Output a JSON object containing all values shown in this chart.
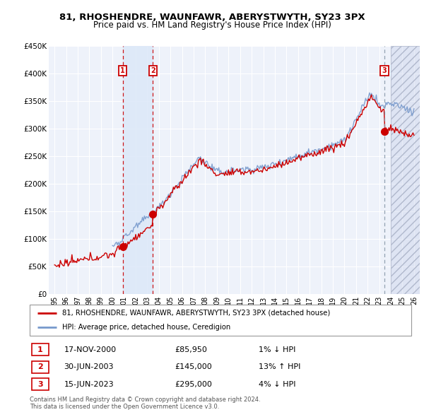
{
  "title": "81, RHOSHENDRE, WAUNFAWR, ABERYSTWYTH, SY23 3PX",
  "subtitle": "Price paid vs. HM Land Registry's House Price Index (HPI)",
  "legend_line1": "81, RHOSHENDRE, WAUNFAWR, ABERYSTWYTH, SY23 3PX (detached house)",
  "legend_line2": "HPI: Average price, detached house, Ceredigion",
  "transactions": [
    {
      "num": 1,
      "date": "17-NOV-2000",
      "price": 85950,
      "pct": "1% ↓ HPI"
    },
    {
      "num": 2,
      "date": "30-JUN-2003",
      "price": 145000,
      "pct": "13% ↑ HPI"
    },
    {
      "num": 3,
      "date": "15-JUN-2023",
      "price": 295000,
      "pct": "4% ↓ HPI"
    }
  ],
  "footer": "Contains HM Land Registry data © Crown copyright and database right 2024.\nThis data is licensed under the Open Government Licence v3.0.",
  "ylim": [
    0,
    450000
  ],
  "yticks": [
    0,
    50000,
    100000,
    150000,
    200000,
    250000,
    300000,
    350000,
    400000,
    450000
  ],
  "ytick_labels": [
    "£0",
    "£50K",
    "£100K",
    "£150K",
    "£200K",
    "£250K",
    "£300K",
    "£350K",
    "£400K",
    "£450K"
  ],
  "xlim_start": 1994.5,
  "xlim_end": 2026.5,
  "background_color": "#ffffff",
  "plot_bg_color": "#eef2fa",
  "grid_color": "#ffffff",
  "red_color": "#cc0000",
  "blue_color": "#7799cc",
  "transaction1_x": 2000.88,
  "transaction1_y": 85950,
  "transaction2_x": 2003.49,
  "transaction2_y": 145000,
  "transaction3_x": 2023.45,
  "transaction3_y": 295000
}
